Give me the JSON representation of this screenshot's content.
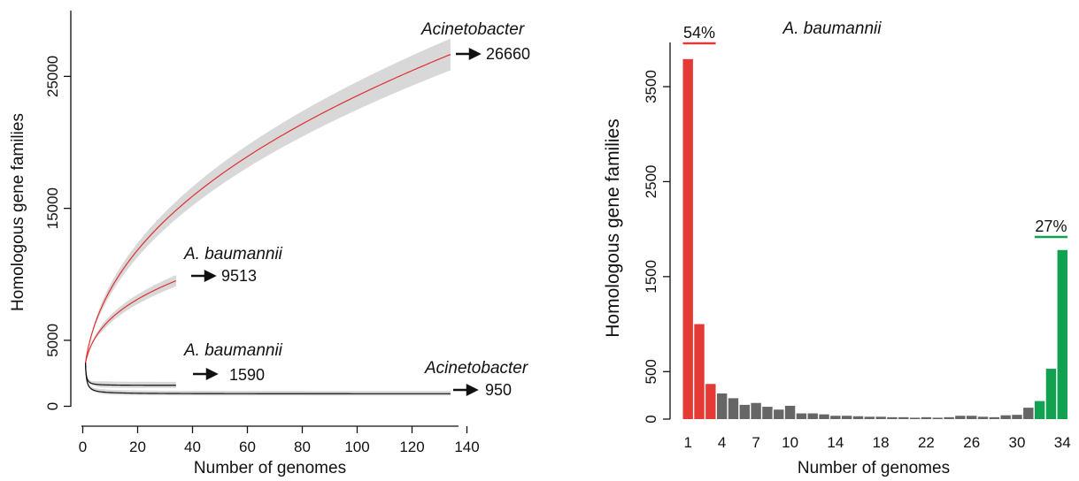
{
  "chart_data": [
    {
      "type": "line",
      "xlabel": "Number of genomes",
      "ylabel": "Homologous gene families",
      "xlim": [
        0,
        140
      ],
      "ylim": [
        0,
        30000
      ],
      "x_ticks": [
        0,
        20,
        40,
        60,
        80,
        100,
        120,
        140
      ],
      "y_ticks": [
        0,
        5000,
        15000,
        25000
      ],
      "grid": false,
      "series": [
        {
          "x_max": 134,
          "start": 3300,
          "end": 26660,
          "kind": "pan",
          "color": "#e03030"
        },
        {
          "x_max": 34,
          "start": 3300,
          "end": 9513,
          "kind": "pan",
          "color": "#e03030"
        },
        {
          "x_max": 34,
          "start": 3300,
          "end": 1590,
          "kind": "core",
          "color": "#111111"
        },
        {
          "x_max": 134,
          "start": 3300,
          "end": 950,
          "kind": "core",
          "color": "#111111"
        }
      ],
      "annotations": [
        {
          "group": "Acinetobacter",
          "value": "26660"
        },
        {
          "group": "A. baumannii",
          "value": "9513"
        },
        {
          "group": "A. baumannii",
          "value": "1590"
        },
        {
          "group": "Acinetobacter",
          "value": "950"
        }
      ],
      "colors": {
        "pan": "#e03030",
        "core": "#111111",
        "band": "#d8d8d8"
      }
    },
    {
      "type": "bar",
      "title": "A. baumannii",
      "xlabel": "Number of genomes",
      "ylabel": "Homologous gene families",
      "ylim": [
        0,
        3900
      ],
      "y_ticks": [
        0,
        500,
        1500,
        2500,
        3500
      ],
      "x_ticks": [
        1,
        4,
        7,
        10,
        14,
        18,
        22,
        26,
        30,
        34
      ],
      "categories": [
        1,
        2,
        3,
        4,
        5,
        6,
        7,
        8,
        9,
        10,
        11,
        12,
        13,
        14,
        15,
        16,
        17,
        18,
        19,
        20,
        21,
        22,
        23,
        24,
        25,
        26,
        27,
        28,
        29,
        30,
        31,
        32,
        33,
        34
      ],
      "values": [
        3790,
        1000,
        370,
        270,
        220,
        150,
        170,
        130,
        100,
        140,
        60,
        60,
        50,
        35,
        35,
        30,
        25,
        25,
        20,
        20,
        15,
        20,
        15,
        20,
        35,
        35,
        25,
        20,
        40,
        45,
        120,
        190,
        530,
        1780
      ],
      "groups": [
        {
          "label": "54%",
          "from": 1,
          "to": 3,
          "color": "#e53935"
        },
        {
          "label": "27%",
          "from": 32,
          "to": 34,
          "color": "#12a150"
        }
      ],
      "colors": {
        "middle": "#666666"
      }
    }
  ]
}
